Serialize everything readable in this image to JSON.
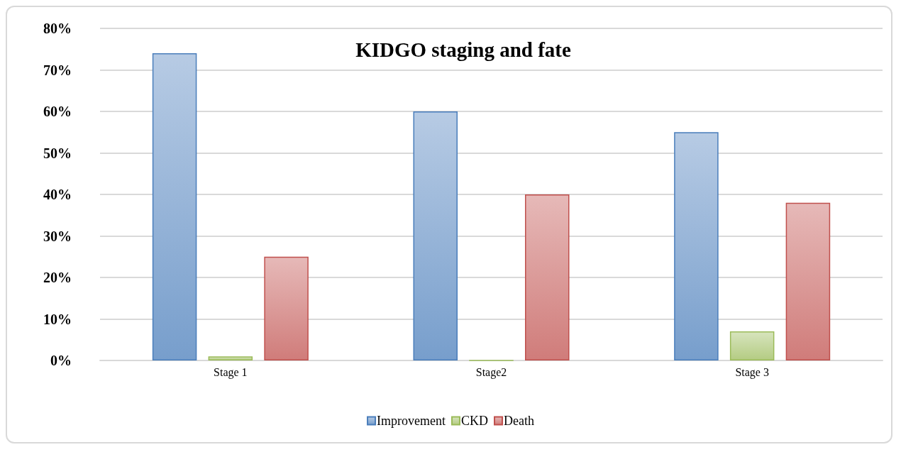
{
  "chart_data": {
    "type": "bar",
    "title": "KIDGO staging and fate",
    "categories": [
      "Stage 1",
      "Stage2",
      "Stage 3"
    ],
    "series": [
      {
        "name": "Improvement",
        "color": "#4a7ebb",
        "values": [
          74,
          60,
          55
        ]
      },
      {
        "name": "CKD",
        "color": "#9bbb59",
        "values": [
          1,
          0,
          7
        ]
      },
      {
        "name": "Death",
        "color": "#c0504d",
        "values": [
          25,
          40,
          38
        ]
      }
    ],
    "ylim": [
      0,
      80
    ],
    "yticks": [
      {
        "value": 0,
        "label": "0%"
      },
      {
        "value": 10,
        "label": "10%"
      },
      {
        "value": 20,
        "label": "20%"
      },
      {
        "value": 30,
        "label": "30%"
      },
      {
        "value": 40,
        "label": "40%"
      },
      {
        "value": 50,
        "label": "50%"
      },
      {
        "value": 60,
        "label": "60%"
      },
      {
        "value": 70,
        "label": "70%"
      },
      {
        "value": 80,
        "label": "80%"
      }
    ],
    "grid": "y",
    "legend": "bottom"
  }
}
